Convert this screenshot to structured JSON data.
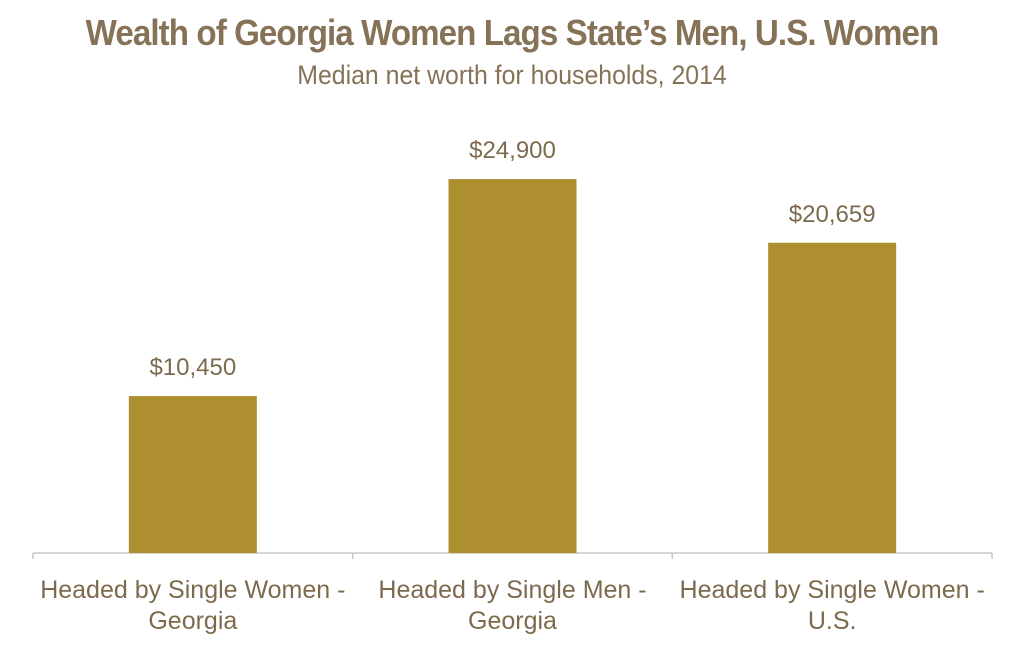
{
  "chart_data": {
    "type": "bar",
    "title": "Wealth of Georgia Women Lags State’s Men, U.S. Women",
    "subtitle": "Median net worth for households, 2014",
    "categories": [
      [
        "Headed by Single Women -",
        "Georgia"
      ],
      [
        "Headed by Single Men -",
        "Georgia"
      ],
      [
        "Headed by Single Women -",
        "U.S."
      ]
    ],
    "values": [
      10450,
      24900,
      20659
    ],
    "value_labels": [
      "$10,450",
      "$24,900",
      "$20,659"
    ],
    "ylim": [
      0,
      29500
    ],
    "grid": false,
    "legend": "none",
    "colors": {
      "bar": "#ad8f30",
      "text": "#7d6a4e",
      "axis": "#c8c8c8"
    }
  }
}
